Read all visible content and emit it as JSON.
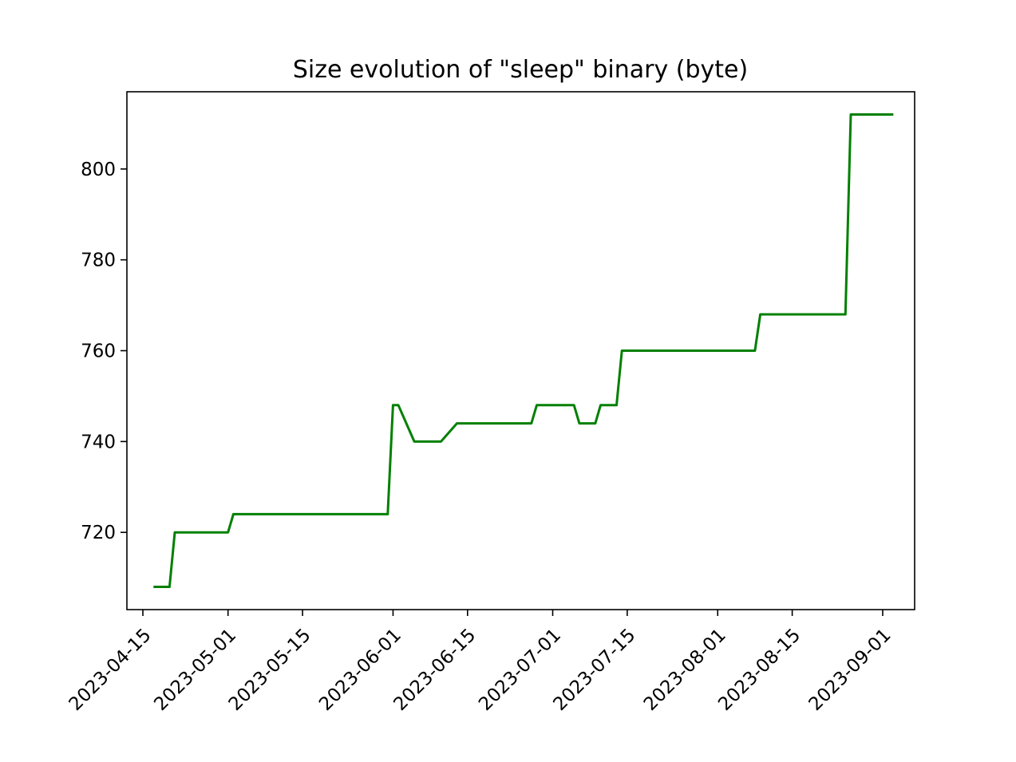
{
  "chart_data": {
    "type": "line",
    "title": "Size evolution of \"sleep\" binary (byte)",
    "xlabel": "",
    "ylabel": "",
    "x_scale": "date",
    "xlim": [
      "2023-04-12",
      "2023-09-07"
    ],
    "ylim": [
      703,
      817
    ],
    "x_ticks": [
      "2023-04-15",
      "2023-05-01",
      "2023-05-15",
      "2023-06-01",
      "2023-06-15",
      "2023-07-01",
      "2023-07-15",
      "2023-08-01",
      "2023-08-15",
      "2023-09-01"
    ],
    "y_ticks": [
      720,
      740,
      760,
      780,
      800
    ],
    "grid": false,
    "legend": false,
    "series": [
      {
        "color": "#008000",
        "x": [
          "2023-04-17",
          "2023-04-20",
          "2023-04-21",
          "2023-05-01",
          "2023-05-02",
          "2023-05-31",
          "2023-06-01",
          "2023-06-02",
          "2023-06-05",
          "2023-06-10",
          "2023-06-13",
          "2023-06-27",
          "2023-06-28",
          "2023-07-05",
          "2023-07-06",
          "2023-07-09",
          "2023-07-10",
          "2023-07-13",
          "2023-07-14",
          "2023-08-08",
          "2023-08-09",
          "2023-08-25",
          "2023-08-26",
          "2023-09-03"
        ],
        "y": [
          708,
          708,
          720,
          720,
          724,
          724,
          748,
          748,
          740,
          740,
          744,
          744,
          748,
          748,
          744,
          744,
          748,
          748,
          760,
          760,
          768,
          768,
          812,
          812
        ]
      }
    ]
  }
}
